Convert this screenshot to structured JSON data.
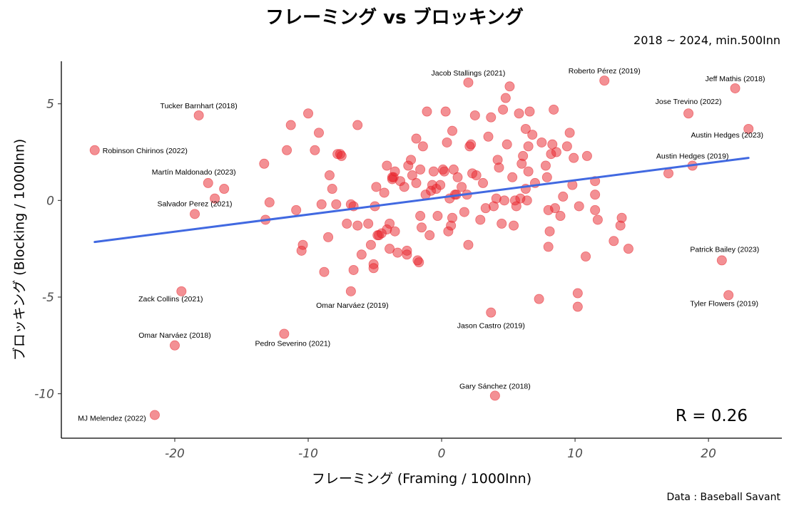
{
  "chart_data": {
    "type": "scatter",
    "title": "フレーミング vs ブロッキング",
    "subtitle": "2018 ~ 2024, min.500Inn",
    "caption": "Data : Baseball Savant",
    "xlabel": "フレーミング (Framing / 1000Inn)",
    "ylabel": "ブロッキング (Blocking / 1000Inn)",
    "xlim": [
      -28.5,
      25.5
    ],
    "ylim": [
      -12.3,
      7.2
    ],
    "x_ticks": [
      -20,
      -10,
      0,
      10,
      20
    ],
    "y_ticks": [
      5,
      0,
      -5,
      -10
    ],
    "grid": false,
    "point_color": "#e8222a",
    "trend_color": "#4169e1",
    "annotation": "R =  0.26",
    "trendline": {
      "x": [
        -26,
        23
      ],
      "y": [
        -2.15,
        2.2
      ]
    },
    "labeled_points": [
      {
        "name": "Jacob Stallings (2021)",
        "x": 2.0,
        "y": 6.1
      },
      {
        "name": "Jeff Mathis (2018)",
        "x": 22.0,
        "y": 5.8
      },
      {
        "name": "Roberto Pérez (2019)",
        "x": 12.2,
        "y": 6.2
      },
      {
        "name": "Jose Trevino (2022)",
        "x": 18.5,
        "y": 4.5
      },
      {
        "name": "Tucker Barnhart (2018)",
        "x": -18.2,
        "y": 4.4
      },
      {
        "name": "Robinson Chirinos (2022)",
        "x": -26.0,
        "y": 2.6
      },
      {
        "name": "Austin Hedges (2023)",
        "x": 23.0,
        "y": 3.7
      },
      {
        "name": "Austin Hedges (2019)",
        "x": 18.8,
        "y": 1.8
      },
      {
        "name": "Martín Maldonado (2023)",
        "x": -17.5,
        "y": 0.9
      },
      {
        "name": "Salvador Perez (2021)",
        "x": -18.5,
        "y": -0.7
      },
      {
        "name": "Patrick Bailey (2023)",
        "x": 21.0,
        "y": -3.1
      },
      {
        "name": "Tyler Flowers (2019)",
        "x": 21.5,
        "y": -4.9
      },
      {
        "name": "Zack Collins (2021)",
        "x": -19.5,
        "y": -4.7
      },
      {
        "name": "Omar Narváez (2019)",
        "x": -6.8,
        "y": -4.7
      },
      {
        "name": "Jason Castro (2019)",
        "x": 3.7,
        "y": -5.8
      },
      {
        "name": "Omar Narváez (2018)",
        "x": -20.0,
        "y": -7.5
      },
      {
        "name": "Pedro Severino (2021)",
        "x": -11.8,
        "y": -6.9
      },
      {
        "name": "Gary Sánchez (2018)",
        "x": 4.0,
        "y": -10.1
      },
      {
        "name": "MJ Melendez (2022)",
        "x": -21.5,
        "y": -11.1
      }
    ],
    "points": [
      [
        -17,
        0.1
      ],
      [
        -16.3,
        0.6
      ],
      [
        -13.3,
        1.9
      ],
      [
        -12.9,
        -0.1
      ],
      [
        -13.2,
        -1.0
      ],
      [
        -11.6,
        2.6
      ],
      [
        -11.3,
        3.9
      ],
      [
        -10.9,
        -0.5
      ],
      [
        -10.5,
        -2.6
      ],
      [
        -10.4,
        -2.3
      ],
      [
        -10,
        4.5
      ],
      [
        -9.5,
        2.6
      ],
      [
        -9.2,
        3.5
      ],
      [
        -9,
        -0.2
      ],
      [
        -8.8,
        -3.7
      ],
      [
        -8.5,
        -1.9
      ],
      [
        -8.4,
        1.3
      ],
      [
        -8.2,
        0.6
      ],
      [
        -7.9,
        -0.2
      ],
      [
        -7.8,
        2.4
      ],
      [
        -7.6,
        2.4
      ],
      [
        -7.5,
        2.3
      ],
      [
        -7.1,
        -1.2
      ],
      [
        -6.8,
        -0.2
      ],
      [
        -6.6,
        -0.3
      ],
      [
        -6.6,
        -3.6
      ],
      [
        -6.3,
        -1.3
      ],
      [
        -6.3,
        3.9
      ],
      [
        -6,
        -2.8
      ],
      [
        -5.5,
        -1.2
      ],
      [
        -5.3,
        -2.3
      ],
      [
        -5.1,
        -3.3
      ],
      [
        -5.1,
        -3.5
      ],
      [
        -5,
        -0.3
      ],
      [
        -4.9,
        0.7
      ],
      [
        -4.8,
        -1.8
      ],
      [
        -4.7,
        -1.8
      ],
      [
        -4.5,
        -1.7
      ],
      [
        -4.3,
        0.4
      ],
      [
        -4.1,
        -1.5
      ],
      [
        -4.1,
        1.8
      ],
      [
        -3.9,
        -1.2
      ],
      [
        -3.9,
        -2.5
      ],
      [
        -3.7,
        1.1
      ],
      [
        -3.7,
        1.2
      ],
      [
        -3.6,
        1.2
      ],
      [
        -3.5,
        1.5
      ],
      [
        -3.5,
        -1.6
      ],
      [
        -3.3,
        -2.7
      ],
      [
        -3.1,
        1.0
      ],
      [
        -2.8,
        0.7
      ],
      [
        -2.6,
        -2.6
      ],
      [
        -2.6,
        -2.8
      ],
      [
        -2.5,
        1.8
      ],
      [
        -2.3,
        2.1
      ],
      [
        -2.2,
        1.3
      ],
      [
        -1.9,
        0.9
      ],
      [
        -1.9,
        3.2
      ],
      [
        -1.8,
        -3.1
      ],
      [
        -1.7,
        -3.2
      ],
      [
        -1.6,
        -0.8
      ],
      [
        -1.6,
        1.6
      ],
      [
        -1.5,
        -1.4
      ],
      [
        -1.4,
        2.8
      ],
      [
        -1.2,
        0.3
      ],
      [
        -1.1,
        4.6
      ],
      [
        -0.9,
        -1.8
      ],
      [
        -0.8,
        0.5
      ],
      [
        -0.7,
        0.8
      ],
      [
        -0.6,
        1.5
      ],
      [
        -0.4,
        0.6
      ],
      [
        -0.3,
        -0.8
      ],
      [
        -0.1,
        0.8
      ],
      [
        0.1,
        1.6
      ],
      [
        0.2,
        1.5
      ],
      [
        0.3,
        4.6
      ],
      [
        0.4,
        3.0
      ],
      [
        0.5,
        -1.6
      ],
      [
        0.6,
        0.1
      ],
      [
        0.7,
        -1.3
      ],
      [
        0.8,
        3.6
      ],
      [
        0.8,
        -0.9
      ],
      [
        0.9,
        1.6
      ],
      [
        1,
        0.3
      ],
      [
        1.1,
        0.3
      ],
      [
        1.2,
        1.2
      ],
      [
        1.5,
        0.7
      ],
      [
        1.7,
        -0.6
      ],
      [
        1.9,
        0.3
      ],
      [
        2.0,
        -2.3
      ],
      [
        2.1,
        2.8
      ],
      [
        2.2,
        2.9
      ],
      [
        2.3,
        1.4
      ],
      [
        2.5,
        4.4
      ],
      [
        2.6,
        1.3
      ],
      [
        2.9,
        -1.0
      ],
      [
        3.1,
        0.9
      ],
      [
        3.3,
        -0.4
      ],
      [
        3.5,
        3.3
      ],
      [
        3.7,
        4.3
      ],
      [
        3.9,
        -0.3
      ],
      [
        4.1,
        0.1
      ],
      [
        4.2,
        2.1
      ],
      [
        4.3,
        1.7
      ],
      [
        4.5,
        -1.2
      ],
      [
        4.6,
        4.7
      ],
      [
        4.7,
        0.0
      ],
      [
        4.8,
        5.3
      ],
      [
        4.9,
        2.9
      ],
      [
        5.1,
        5.9
      ],
      [
        5.3,
        1.2
      ],
      [
        5.4,
        -1.3
      ],
      [
        5.5,
        0.0
      ],
      [
        5.6,
        -0.3
      ],
      [
        5.8,
        4.5
      ],
      [
        5.9,
        0.1
      ],
      [
        6,
        1.9
      ],
      [
        6.1,
        2.3
      ],
      [
        6.3,
        3.7
      ],
      [
        6.3,
        0.6
      ],
      [
        6.4,
        0.0
      ],
      [
        6.5,
        1.5
      ],
      [
        6.5,
        2.8
      ],
      [
        6.6,
        4.6
      ],
      [
        6.8,
        3.4
      ],
      [
        7.0,
        0.9
      ],
      [
        7.3,
        -5.1
      ],
      [
        7.5,
        3.0
      ],
      [
        7.8,
        1.8
      ],
      [
        7.9,
        1.2
      ],
      [
        8.0,
        -0.5
      ],
      [
        8.0,
        -2.4
      ],
      [
        8.1,
        -1.6
      ],
      [
        8.2,
        2.4
      ],
      [
        8.3,
        2.9
      ],
      [
        8.4,
        4.7
      ],
      [
        8.5,
        -0.4
      ],
      [
        8.6,
        2.5
      ],
      [
        8.9,
        -0.8
      ],
      [
        9.1,
        0.2
      ],
      [
        9.4,
        2.8
      ],
      [
        9.6,
        3.5
      ],
      [
        9.8,
        0.8
      ],
      [
        9.9,
        2.2
      ],
      [
        10.2,
        -4.8
      ],
      [
        10.2,
        -5.5
      ],
      [
        10.3,
        -0.3
      ],
      [
        10.8,
        -2.9
      ],
      [
        10.9,
        2.3
      ],
      [
        11.5,
        1.0
      ],
      [
        11.5,
        0.3
      ],
      [
        11.5,
        -0.5
      ],
      [
        11.7,
        -1.0
      ],
      [
        12.9,
        -2.1
      ],
      [
        13.4,
        -1.3
      ],
      [
        13.5,
        -0.9
      ],
      [
        14.0,
        -2.5
      ],
      [
        17.0,
        1.4
      ]
    ]
  }
}
